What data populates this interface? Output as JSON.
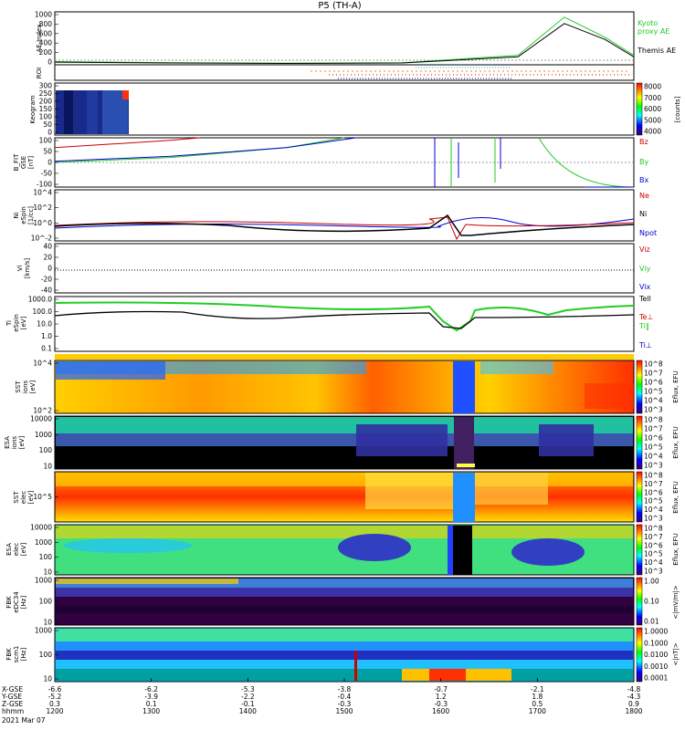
{
  "chart_data": {
    "type": "line",
    "title": "P5 (TH-A)",
    "date": "2021 Mar 07",
    "time_range": [
      "1200",
      "1800"
    ],
    "panels": [
      {
        "id": "ae",
        "ylabel": [
          "AE Index"
        ],
        "ylim": [
          0,
          1000
        ],
        "yticks": [
          "1000",
          "800",
          "600",
          "400",
          "200",
          "0"
        ],
        "series": [
          {
            "name": "Kyoto proxy AE",
            "color": "#22cc22",
            "t": [
              0,
              0.2,
              0.4,
              0.6,
              0.8,
              0.88,
              0.95,
              1.0
            ],
            "v": [
              60,
              40,
              30,
              40,
              180,
              900,
              520,
              180
            ]
          },
          {
            "name": "Themis AE",
            "color": "#000000",
            "t": [
              0,
              0.2,
              0.4,
              0.6,
              0.8,
              0.88,
              0.95,
              1.0
            ],
            "v": [
              50,
              35,
              25,
              35,
              150,
              780,
              480,
              150
            ]
          }
        ],
        "legend": [
          "Kyoto",
          "proxy AE",
          "Themis AE"
        ]
      },
      {
        "id": "roi",
        "ylabel": [
          "ROI"
        ],
        "yticks": []
      },
      {
        "id": "keogram",
        "ylabel": [
          "Keogram"
        ],
        "yticks": [
          "300",
          "250",
          "200",
          "150",
          "100",
          "50",
          "0"
        ],
        "colorbar": {
          "ticks": [
            "8000",
            "7000",
            "6000",
            "5000",
            "4000"
          ],
          "unit": "[counts]"
        }
      },
      {
        "id": "bfit",
        "ylabel": [
          "B_FIT",
          "GSE",
          "[nT]"
        ],
        "ylim": [
          -100,
          100
        ],
        "yticks": [
          "100",
          "50",
          "0",
          "-50",
          "-100"
        ],
        "series": [
          {
            "name": "Bz",
            "color": "#cc0000",
            "t": [
              0,
              0.1,
              0.2,
              0.25
            ],
            "v": [
              60,
              75,
              90,
              100
            ]
          },
          {
            "name": "By",
            "color": "#22cc22",
            "t": [
              0,
              0.2,
              0.4,
              0.5
            ],
            "v": [
              0,
              20,
              60,
              100
            ]
          },
          {
            "name": "Bx",
            "color": "#0000cc",
            "t": [
              0,
              0.2,
              0.4,
              0.52
            ],
            "v": [
              5,
              25,
              60,
              100
            ]
          }
        ],
        "legend": [
          "Bz",
          "By",
          "Bx"
        ]
      },
      {
        "id": "density",
        "ylabel": [
          "Ni",
          "eSpin",
          "[1/cc]"
        ],
        "yticks": [
          "10^4",
          "10^2",
          "10^0",
          "10^-2"
        ],
        "legend": [
          "Ne",
          "Ni",
          "Npot"
        ]
      },
      {
        "id": "velocity",
        "ylabel": [
          "Vi",
          "[km/s]"
        ],
        "ylim": [
          -50,
          50
        ],
        "yticks": [
          "40",
          "20",
          "0",
          "-20",
          "-40"
        ],
        "legend": [
          "Viz",
          "Viy",
          "Vix"
        ]
      },
      {
        "id": "temperature",
        "ylabel": [
          "Ti",
          "eSpin",
          "[eV]"
        ],
        "yticks": [
          "1000.0",
          "100.0",
          "10.0",
          "1.0",
          "0.1"
        ],
        "legend": [
          "Tell",
          "Te⊥",
          "Ti‖",
          "Ti⊥"
        ]
      },
      {
        "id": "sst_i",
        "ylabel": [
          "SST",
          "ions",
          "[eV]"
        ],
        "yticks": [
          "10^4",
          "10^2"
        ],
        "colorbar": {
          "ticks": [
            "10^8",
            "10^7",
            "10^6",
            "10^5",
            "10^4",
            "10^3"
          ],
          "unit": "Eflux, EFU"
        }
      },
      {
        "id": "esa_i",
        "ylabel": [
          "ESA",
          "ions",
          "[eV]"
        ],
        "yticks": [
          "10000",
          "1000",
          "100",
          "10"
        ],
        "colorbar": {
          "ticks": [
            "10^8",
            "10^7",
            "10^6",
            "10^5",
            "10^4",
            "10^3"
          ],
          "unit": "Eflux, EFU"
        }
      },
      {
        "id": "sst_e",
        "ylabel": [
          "SST",
          "elec",
          "[eV]"
        ],
        "yticks": [
          "10^5"
        ],
        "colorbar": {
          "ticks": [
            "10^8",
            "10^7",
            "10^6",
            "10^5",
            "10^4",
            "10^3"
          ],
          "unit": "Eflux, EFU"
        }
      },
      {
        "id": "esa_e",
        "ylabel": [
          "ESA",
          "elec",
          "[eV]"
        ],
        "yticks": [
          "10000",
          "1000",
          "100",
          "10"
        ],
        "colorbar": {
          "ticks": [
            "10^8",
            "10^7",
            "10^6",
            "10^5",
            "10^4",
            "10^3"
          ],
          "unit": "Eflux, EFU"
        }
      },
      {
        "id": "fbk_e",
        "ylabel": [
          "FBK",
          "eDC34",
          "[Hz]"
        ],
        "yticks": [
          "1000",
          "100",
          "10"
        ],
        "colorbar": {
          "ticks": [
            "1.00",
            "0.10",
            "0.01"
          ],
          "unit": "<|mV/m|>"
        }
      },
      {
        "id": "fbk_b",
        "ylabel": [
          "FBK",
          "scm1",
          "[Hz]"
        ],
        "yticks": [
          "1000",
          "100",
          "10"
        ],
        "colorbar": {
          "ticks": [
            "1.0000",
            "0.1000",
            "0.0100",
            "0.0010",
            "0.0001"
          ],
          "unit": "<|nT|>"
        }
      }
    ],
    "xaxis": {
      "row_labels": [
        "X-GSE",
        "Y-GSE",
        "Z-GSE",
        "hhmm"
      ],
      "ticks": [
        {
          "values": [
            "-6.6",
            "-5.2",
            "0.3",
            "1200"
          ]
        },
        {
          "values": [
            "-6.2",
            "-3.9",
            "0.1",
            "1300"
          ]
        },
        {
          "values": [
            "-5.3",
            "-2.2",
            "-0.1",
            "1400"
          ]
        },
        {
          "values": [
            "-3.8",
            "-0.4",
            "-0.3",
            "1500"
          ]
        },
        {
          "values": [
            "-0.7",
            "1.2",
            "-0.3",
            "1600"
          ]
        },
        {
          "values": [
            "-2.1",
            "1.8",
            "0.5",
            "1700"
          ]
        },
        {
          "values": [
            "-4.8",
            "-4.3",
            "0.9",
            "1800"
          ]
        }
      ]
    }
  }
}
